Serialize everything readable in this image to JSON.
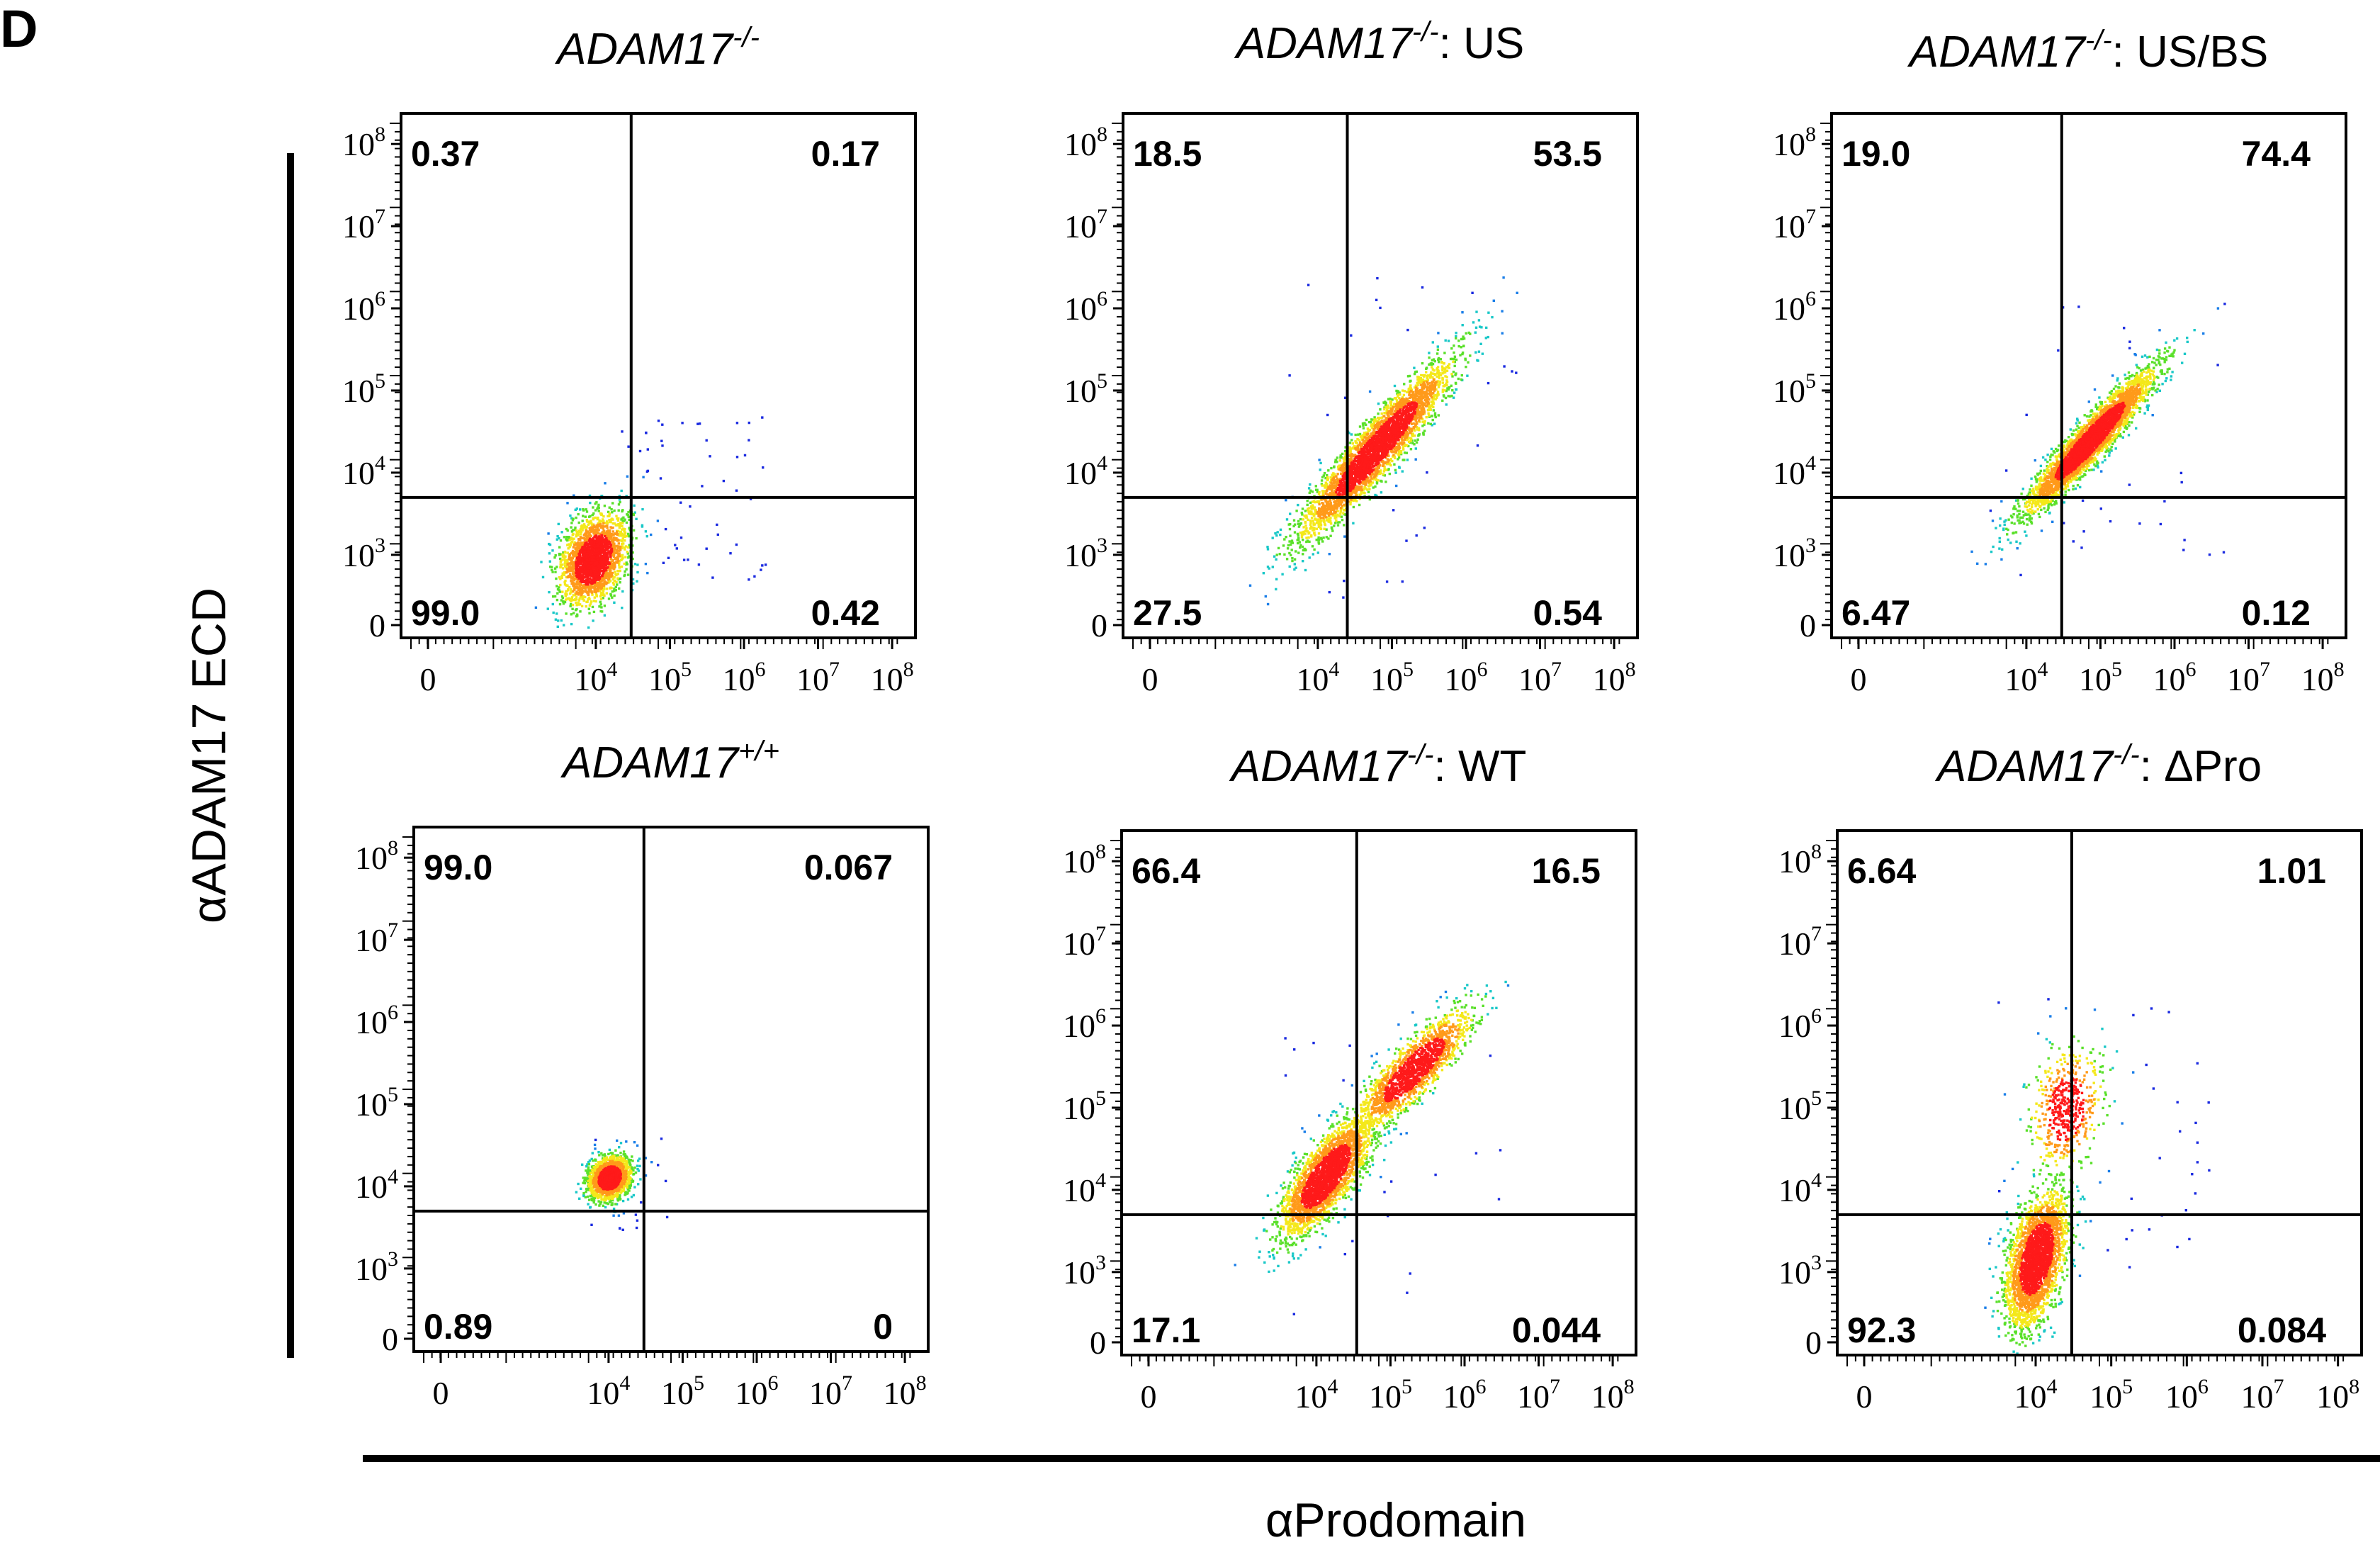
{
  "figure": {
    "panel_letter": "D",
    "ylabel": "αADAM17 ECD",
    "xlabel": "αProdomain"
  },
  "chart_data": [
    {
      "type": "scatter",
      "subtype": "flow-cytometry-density",
      "title_gene": "ADAM17",
      "title_sup": "-/-",
      "title_suffix": "",
      "x_scale": "log",
      "y_scale": "log",
      "x_ticks": [
        "0",
        "10^4",
        "10^5",
        "10^6",
        "10^7",
        "10^8"
      ],
      "y_ticks": [
        "0",
        "10^3",
        "10^4",
        "10^5",
        "10^6",
        "10^7",
        "10^8"
      ],
      "gate_x": 30000,
      "gate_y": 5000,
      "quadrants": {
        "upper_left": "0.37",
        "upper_right": "0.17",
        "lower_left": "99.0",
        "lower_right": "0.42"
      },
      "population": {
        "center_x": 9000,
        "center_y": 900,
        "sx": 0.45,
        "sy": 0.55,
        "rho": 0.35,
        "n": 2200
      },
      "outliers": {
        "x_range": [
          20000,
          2000000
        ],
        "y_range": [
          500,
          50000
        ],
        "n": 60
      }
    },
    {
      "type": "scatter",
      "subtype": "flow-cytometry-density",
      "title_gene": "ADAM17",
      "title_sup": "-/-",
      "title_suffix": ": US",
      "x_scale": "log",
      "y_scale": "log",
      "x_ticks": [
        "0",
        "10^4",
        "10^5",
        "10^6",
        "10^7",
        "10^8"
      ],
      "y_ticks": [
        "0",
        "10^3",
        "10^4",
        "10^5",
        "10^6",
        "10^7",
        "10^8"
      ],
      "gate_x": 25000,
      "gate_y": 5000,
      "quadrants": {
        "upper_left": "18.5",
        "upper_right": "53.5",
        "lower_left": "27.5",
        "lower_right": "0.54"
      },
      "population": {
        "center_x": 60000,
        "center_y": 20000,
        "sx": 1.0,
        "sy": 1.05,
        "rho": 0.93,
        "n": 3500
      },
      "outliers": {
        "x_range": [
          3000,
          5000000
        ],
        "y_range": [
          300,
          3000000
        ],
        "n": 40
      }
    },
    {
      "type": "scatter",
      "subtype": "flow-cytometry-density",
      "title_gene": "ADAM17",
      "title_sup": "-/-",
      "title_suffix": ": US/BS",
      "x_scale": "log",
      "y_scale": "log",
      "x_ticks": [
        "0",
        "10^4",
        "10^5",
        "10^6",
        "10^7",
        "10^8"
      ],
      "y_ticks": [
        "0",
        "10^3",
        "10^4",
        "10^5",
        "10^6",
        "10^7",
        "10^8"
      ],
      "gate_x": 30000,
      "gate_y": 5000,
      "quadrants": {
        "upper_left": "19.0",
        "upper_right": "74.4",
        "lower_left": "6.47",
        "lower_right": "0.12"
      },
      "population": {
        "center_x": 70000,
        "center_y": 25000,
        "sx": 0.85,
        "sy": 0.85,
        "rho": 0.94,
        "n": 3500
      },
      "outliers": {
        "x_range": [
          3000,
          5000000
        ],
        "y_range": [
          500,
          2000000
        ],
        "n": 40
      }
    },
    {
      "type": "scatter",
      "subtype": "flow-cytometry-density",
      "title_gene": "ADAM17",
      "title_sup": "+/+",
      "title_suffix": "",
      "x_scale": "log",
      "y_scale": "log",
      "x_ticks": [
        "0",
        "10^4",
        "10^5",
        "10^6",
        "10^7",
        "10^8"
      ],
      "y_ticks": [
        "0",
        "10^3",
        "10^4",
        "10^5",
        "10^6",
        "10^7",
        "10^8"
      ],
      "gate_x": 30000,
      "gate_y": 5000,
      "quadrants": {
        "upper_left": "99.0",
        "upper_right": "0.067",
        "lower_left": "0.89",
        "lower_right": "0"
      },
      "population": {
        "center_x": 10000,
        "center_y": 13000,
        "sx": 0.28,
        "sy": 0.26,
        "rho": 0.2,
        "n": 1600
      },
      "outliers": {
        "x_range": [
          5000,
          60000
        ],
        "y_range": [
          3000,
          40000
        ],
        "n": 30
      }
    },
    {
      "type": "scatter",
      "subtype": "flow-cytometry-density",
      "title_gene": "ADAM17",
      "title_sup": "-/-",
      "title_suffix": ": WT",
      "x_scale": "log",
      "y_scale": "log",
      "x_ticks": [
        "0",
        "10^4",
        "10^5",
        "10^6",
        "10^7",
        "10^8"
      ],
      "y_ticks": [
        "0",
        "10^3",
        "10^4",
        "10^5",
        "10^6",
        "10^7",
        "10^8"
      ],
      "gate_x": 35000,
      "gate_y": 5000,
      "quadrants": {
        "upper_left": "66.4",
        "upper_right": "16.5",
        "lower_left": "17.1",
        "lower_right": "0.044"
      },
      "population": {
        "center_x": 13000,
        "center_y": 15000,
        "sx": 0.6,
        "sy": 0.7,
        "rho": 0.75,
        "n": 2600
      },
      "population2": {
        "center_x": 200000,
        "center_y": 300000,
        "sx": 0.75,
        "sy": 0.7,
        "rho": 0.85,
        "n": 1600
      },
      "outliers": {
        "x_range": [
          2000,
          3000000
        ],
        "y_range": [
          300,
          3000000
        ],
        "n": 40
      }
    },
    {
      "type": "scatter",
      "subtype": "flow-cytometry-density",
      "title_gene": "ADAM17",
      "title_sup": "-/-",
      "title_suffix": ": ΔPro",
      "x_scale": "log",
      "y_scale": "log",
      "x_ticks": [
        "0",
        "10^4",
        "10^5",
        "10^6",
        "10^7",
        "10^8"
      ],
      "y_ticks": [
        "0",
        "10^3",
        "10^4",
        "10^5",
        "10^6",
        "10^7",
        "10^8"
      ],
      "gate_x": 30000,
      "gate_y": 5000,
      "quadrants": {
        "upper_left": "6.64",
        "upper_right": "1.01",
        "lower_left": "92.3",
        "lower_right": "0.084"
      },
      "population": {
        "center_x": 10000,
        "center_y": 1500,
        "sx": 0.4,
        "sy": 0.8,
        "rho": 0.45,
        "n": 2600
      },
      "population2": {
        "center_x": 25000,
        "center_y": 100000,
        "sx": 0.45,
        "sy": 0.7,
        "rho": 0.2,
        "n": 500
      },
      "outliers": {
        "x_range": [
          3000,
          2000000
        ],
        "y_range": [
          800,
          3000000
        ],
        "n": 60
      }
    }
  ]
}
